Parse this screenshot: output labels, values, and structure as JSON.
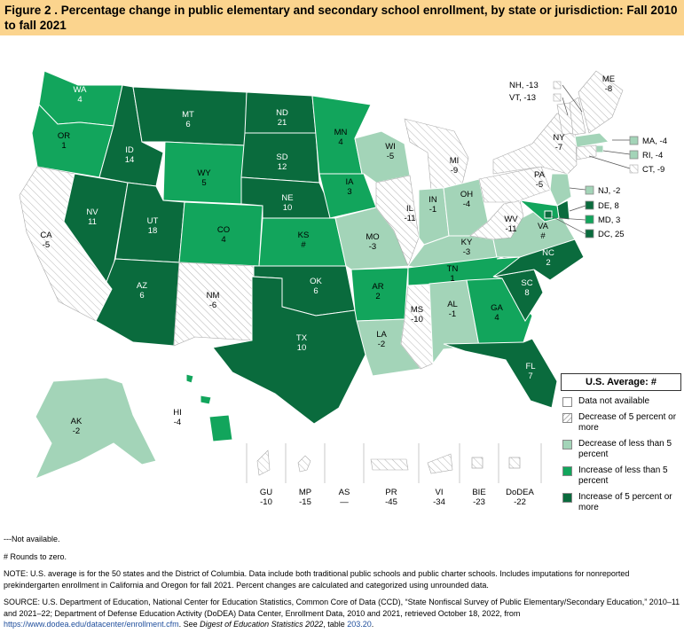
{
  "title": "Figure 2 . Percentage change in public elementary and secondary school enrollment, by state or jurisdiction: Fall 2010 to fall 2021",
  "colors": {
    "inc5": "#0a6b3d",
    "inc_less": "#12a55c",
    "dec_less": "#a3d4b8",
    "dec5": "#ffffff",
    "title_bg": "#fbd48e"
  },
  "states": {
    "WA": "WA\n4",
    "OR": "OR\n1",
    "CA": "CA\n-5",
    "NV": "NV\n11",
    "ID": "ID\n14",
    "MT": "MT\n6",
    "WY": "WY\n5",
    "UT": "UT\n18",
    "AZ": "AZ\n6",
    "CO": "CO\n4",
    "NM": "NM\n-6",
    "ND": "ND\n21",
    "SD": "SD\n12",
    "NE": "NE\n10",
    "KS": "KS\n#",
    "OK": "OK\n6",
    "TX": "TX\n10",
    "MN": "MN\n4",
    "IA": "IA\n3",
    "MO": "MO\n-3",
    "AR": "AR\n2",
    "LA": "LA\n-2",
    "WI": "WI\n-5",
    "IL": "IL\n-11",
    "MS": "MS\n-10",
    "MI": "MI\n-9",
    "IN": "IN\n-1",
    "OH": "OH\n-4",
    "KY": "KY\n-3",
    "TN": "TN\n1",
    "AL": "AL\n-1",
    "GA": "GA\n4",
    "FL": "FL\n7",
    "SC": "SC\n8",
    "NC": "NC\n2",
    "VA": "VA\n#",
    "WV": "WV\n-11",
    "PA": "PA\n-5",
    "NY": "NY\n-7",
    "ME": "ME\n-8",
    "AK": "AK\n-2",
    "HI": "HI\n-4"
  },
  "callouts": {
    "NH": "NH, -13",
    "VT": "VT, -13",
    "MA": "MA, -4",
    "RI": "RI, -4",
    "CT": "CT, -9",
    "NJ": "NJ, -2",
    "DE": "DE, 8",
    "MD": "MD, 3",
    "DC": "DC, 25"
  },
  "territories": [
    {
      "code": "GU",
      "value": "-10"
    },
    {
      "code": "MP",
      "value": "-15"
    },
    {
      "code": "AS",
      "value": "—"
    },
    {
      "code": "PR",
      "value": "-45"
    },
    {
      "code": "VI",
      "value": "-34"
    },
    {
      "code": "BIE",
      "value": "-23"
    },
    {
      "code": "DoDEA",
      "value": "-22"
    }
  ],
  "legend": {
    "title": "U.S. Average: #",
    "items": [
      {
        "label": "Data not available",
        "category": "na"
      },
      {
        "label": "Decrease of 5 percent or more",
        "category": "dec5"
      },
      {
        "label": "Decrease of less than 5 percent",
        "category": "dec_less"
      },
      {
        "label": "Increase of less than 5 percent",
        "category": "inc_less"
      },
      {
        "label": "Increase of 5 percent or more",
        "category": "inc5"
      }
    ]
  },
  "notes": {
    "not_available": "---Not available.",
    "rounds": "# Rounds to zero.",
    "note": "NOTE: U.S. average is for the 50 states and the District of Columbia. Data include both traditional public schools and public charter schools. Includes imputations for nonreported prekindergarten enrollment in California and Oregon for fall 2021. Percent changes are calculated and categorized using unrounded data.",
    "source_pre": "SOURCE: U.S. Department of Education, National Center for Education Statistics, Common Core of Data (CCD), “State Nonfiscal Survey of Public Elementary/Secondary Education,” 2010–11 and 2021–22; Department of Defense Education Activity (DoDEA) Data Center, Enrollment Data, 2010 and 2021, retrieved October 18, 2022, from",
    "source_link": "https://www.dodea.edu/datacenter/enrollment.cfm",
    "source_mid": ". See ",
    "source_digest": "Digest of Education Statistics 2022",
    "source_table_pre": ", table ",
    "source_table": "203.20",
    "source_end": "."
  }
}
